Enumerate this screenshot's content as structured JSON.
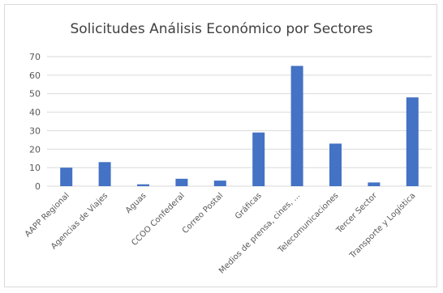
{
  "chart_data": {
    "type": "bar",
    "title": "Solicitudes Análisis Económico por Sectores",
    "xlabel": "",
    "ylabel": "",
    "categories": [
      "AAPP Regional",
      "Agencias de Viajes",
      "Aguas",
      "CCOO Confederal",
      "Correo Postal",
      "Gráficas",
      "Medios de prensa, cines, ...",
      "Telecomunicaciones",
      "Tercer Sector",
      "Transporte y Logística"
    ],
    "values": [
      10,
      13,
      1,
      4,
      3,
      29,
      65,
      23,
      2,
      48
    ],
    "ylim": [
      0,
      70
    ],
    "yticks": [
      0,
      10,
      20,
      30,
      40,
      50,
      60,
      70
    ],
    "grid": true,
    "legend": "none",
    "colors": {
      "bar": "#4472c4",
      "grid": "#d9d9d9",
      "text": "#595959",
      "title": "#404040"
    }
  }
}
